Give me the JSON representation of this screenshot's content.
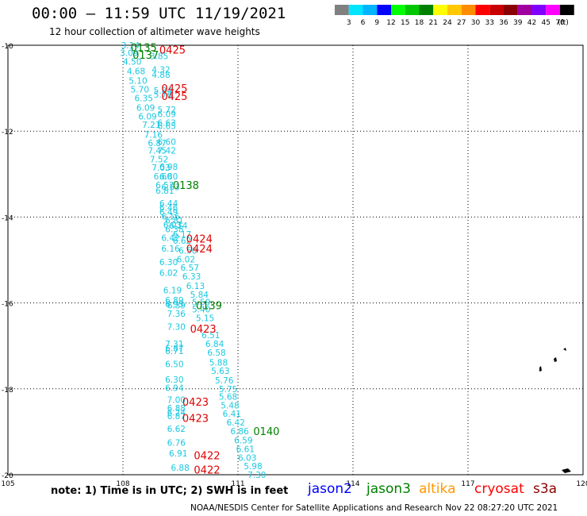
{
  "header": {
    "title": "00:00 – 11:59 UTC 11/19/2021",
    "subtitle": "12 hour collection of altimeter wave heights"
  },
  "legend": {
    "colors": [
      "#808080",
      "#00e5ff",
      "#00b4ff",
      "#0000ff",
      "#00ff00",
      "#00c800",
      "#008000",
      "#ffff00",
      "#ffc800",
      "#ff8c00",
      "#ff0000",
      "#c80000",
      "#8b0000",
      "#a000a0",
      "#7f00ff",
      "#ff00ff",
      "#000000"
    ],
    "labels": [
      "3",
      "6",
      "9",
      "12",
      "15",
      "18",
      "21",
      "24",
      "27",
      "30",
      "33",
      "36",
      "39",
      "42",
      "45",
      "70",
      "(ft)"
    ]
  },
  "map": {
    "lon_ticks": [
      "105",
      "108",
      "111",
      "114",
      "117",
      "120"
    ],
    "lat_ticks": [
      "-10",
      "-12",
      "-14",
      "-16",
      "-18",
      "-20"
    ],
    "colors": {
      "cyan": "#1ac8e0",
      "green": "#008000",
      "red": "#e00000"
    },
    "wave_labels": [
      {
        "lon": 107.95,
        "lat": -10.0,
        "t": "3.14"
      },
      {
        "lon": 107.92,
        "lat": -10.18,
        "t": "3.09"
      },
      {
        "lon": 108.7,
        "lat": -10.25,
        "t": "3.85"
      },
      {
        "lon": 108.0,
        "lat": -10.38,
        "t": "4.50"
      },
      {
        "lon": 108.1,
        "lat": -10.6,
        "t": "4.68"
      },
      {
        "lon": 108.75,
        "lat": -10.56,
        "t": "4.32"
      },
      {
        "lon": 108.75,
        "lat": -10.68,
        "t": "4.88"
      },
      {
        "lon": 108.15,
        "lat": -10.82,
        "t": "5.10"
      },
      {
        "lon": 108.2,
        "lat": -11.03,
        "t": "5.70"
      },
      {
        "lon": 108.8,
        "lat": -11.05,
        "t": "5.84"
      },
      {
        "lon": 108.8,
        "lat": -11.15,
        "t": "5.76"
      },
      {
        "lon": 108.3,
        "lat": -11.23,
        "t": "6.35"
      },
      {
        "lon": 108.35,
        "lat": -11.45,
        "t": "6.09"
      },
      {
        "lon": 108.9,
        "lat": -11.5,
        "t": "5.72"
      },
      {
        "lon": 108.9,
        "lat": -11.6,
        "t": "6.09"
      },
      {
        "lon": 108.4,
        "lat": -11.65,
        "t": "6.09"
      },
      {
        "lon": 108.9,
        "lat": -11.8,
        "t": "6.63"
      },
      {
        "lon": 108.5,
        "lat": -11.85,
        "t": "7.21"
      },
      {
        "lon": 108.9,
        "lat": -11.88,
        "t": "6.65"
      },
      {
        "lon": 108.55,
        "lat": -12.08,
        "t": "7.16"
      },
      {
        "lon": 108.65,
        "lat": -12.27,
        "t": "6.87"
      },
      {
        "lon": 108.9,
        "lat": -12.25,
        "t": "6.60"
      },
      {
        "lon": 108.65,
        "lat": -12.45,
        "t": "7.45"
      },
      {
        "lon": 108.9,
        "lat": -12.45,
        "t": "7.42"
      },
      {
        "lon": 108.7,
        "lat": -12.65,
        "t": "7.52"
      },
      {
        "lon": 108.75,
        "lat": -12.85,
        "t": "7.03"
      },
      {
        "lon": 108.95,
        "lat": -12.83,
        "t": "6.98"
      },
      {
        "lon": 108.8,
        "lat": -13.05,
        "t": "6.60"
      },
      {
        "lon": 108.95,
        "lat": -13.05,
        "t": "6.80"
      },
      {
        "lon": 108.85,
        "lat": -13.25,
        "t": "6.57"
      },
      {
        "lon": 109.0,
        "lat": -13.3,
        "t": "6.53"
      },
      {
        "lon": 108.85,
        "lat": -13.38,
        "t": "6.81"
      },
      {
        "lon": 108.95,
        "lat": -13.68,
        "t": "6.44"
      },
      {
        "lon": 108.95,
        "lat": -13.78,
        "t": "6.46"
      },
      {
        "lon": 108.95,
        "lat": -13.88,
        "t": "6.49"
      },
      {
        "lon": 109.0,
        "lat": -13.98,
        "t": "6.16"
      },
      {
        "lon": 109.1,
        "lat": -14.08,
        "t": "6.81"
      },
      {
        "lon": 109.05,
        "lat": -14.18,
        "t": "6.03"
      },
      {
        "lon": 109.2,
        "lat": -14.2,
        "t": "6.14"
      },
      {
        "lon": 109.1,
        "lat": -14.28,
        "t": "6.38"
      },
      {
        "lon": 109.3,
        "lat": -14.4,
        "t": "6.17"
      },
      {
        "lon": 109.0,
        "lat": -14.48,
        "t": "6.42"
      },
      {
        "lon": 109.3,
        "lat": -14.55,
        "t": "6.62"
      },
      {
        "lon": 109.0,
        "lat": -14.73,
        "t": "6.16"
      },
      {
        "lon": 109.45,
        "lat": -14.78,
        "t": "6.50"
      },
      {
        "lon": 109.4,
        "lat": -14.98,
        "t": "6.02"
      },
      {
        "lon": 108.95,
        "lat": -15.05,
        "t": "6.30"
      },
      {
        "lon": 109.5,
        "lat": -15.18,
        "t": "6.57"
      },
      {
        "lon": 108.95,
        "lat": -15.3,
        "t": "6.02"
      },
      {
        "lon": 109.55,
        "lat": -15.38,
        "t": "6.33"
      },
      {
        "lon": 109.65,
        "lat": -15.6,
        "t": "6.13"
      },
      {
        "lon": 109.05,
        "lat": -15.7,
        "t": "6.19"
      },
      {
        "lon": 109.75,
        "lat": -15.8,
        "t": "5.84"
      },
      {
        "lon": 109.1,
        "lat": -15.93,
        "t": "6.89"
      },
      {
        "lon": 109.1,
        "lat": -16.03,
        "t": "6.95"
      },
      {
        "lon": 109.8,
        "lat": -15.98,
        "t": "5.59"
      },
      {
        "lon": 109.15,
        "lat": -16.05,
        "t": "6.39"
      },
      {
        "lon": 109.8,
        "lat": -16.15,
        "t": "5.40"
      },
      {
        "lon": 109.15,
        "lat": -16.25,
        "t": "7.36"
      },
      {
        "lon": 109.9,
        "lat": -16.35,
        "t": "5.15"
      },
      {
        "lon": 109.15,
        "lat": -16.55,
        "t": "7.30"
      },
      {
        "lon": 110.05,
        "lat": -16.75,
        "t": "6.51"
      },
      {
        "lon": 109.1,
        "lat": -16.95,
        "t": "7.31"
      },
      {
        "lon": 110.15,
        "lat": -16.95,
        "t": "6.84"
      },
      {
        "lon": 109.1,
        "lat": -17.05,
        "t": "6.87"
      },
      {
        "lon": 109.1,
        "lat": -17.12,
        "t": "6.71"
      },
      {
        "lon": 110.2,
        "lat": -17.15,
        "t": "6.58"
      },
      {
        "lon": 110.25,
        "lat": -17.38,
        "t": "5.88"
      },
      {
        "lon": 109.1,
        "lat": -17.42,
        "t": "6.50"
      },
      {
        "lon": 110.3,
        "lat": -17.58,
        "t": "5.63"
      },
      {
        "lon": 109.1,
        "lat": -17.78,
        "t": "6.30"
      },
      {
        "lon": 110.4,
        "lat": -17.8,
        "t": "5.76"
      },
      {
        "lon": 109.1,
        "lat": -17.98,
        "t": "6.94"
      },
      {
        "lon": 110.5,
        "lat": -18.0,
        "t": "5.75"
      },
      {
        "lon": 110.5,
        "lat": -18.18,
        "t": "5.68"
      },
      {
        "lon": 109.15,
        "lat": -18.25,
        "t": "7.00"
      },
      {
        "lon": 110.55,
        "lat": -18.38,
        "t": "5.48"
      },
      {
        "lon": 109.15,
        "lat": -18.45,
        "t": "6.88"
      },
      {
        "lon": 109.15,
        "lat": -18.55,
        "t": "6.24"
      },
      {
        "lon": 109.15,
        "lat": -18.63,
        "t": "6.87"
      },
      {
        "lon": 110.6,
        "lat": -18.58,
        "t": "6.41"
      },
      {
        "lon": 110.7,
        "lat": -18.78,
        "t": "6.42"
      },
      {
        "lon": 109.15,
        "lat": -18.93,
        "t": "6.62"
      },
      {
        "lon": 110.8,
        "lat": -18.98,
        "t": "6.86"
      },
      {
        "lon": 110.9,
        "lat": -19.2,
        "t": "6.59"
      },
      {
        "lon": 109.15,
        "lat": -19.25,
        "t": "6.76"
      },
      {
        "lon": 110.95,
        "lat": -19.4,
        "t": "6.61"
      },
      {
        "lon": 109.2,
        "lat": -19.5,
        "t": "6.91"
      },
      {
        "lon": 111.0,
        "lat": -19.6,
        "t": "6.03"
      },
      {
        "lon": 111.15,
        "lat": -19.8,
        "t": "5.98"
      },
      {
        "lon": 109.25,
        "lat": -19.83,
        "t": "6.88"
      },
      {
        "lon": 111.25,
        "lat": -20.0,
        "t": "7.30"
      }
    ],
    "pass_labels": [
      {
        "lon": 108.2,
        "lat": -10.05,
        "t": "0135",
        "c": "green"
      },
      {
        "lon": 108.25,
        "lat": -10.22,
        "t": "0137",
        "c": "green"
      },
      {
        "lon": 108.95,
        "lat": -10.1,
        "t": "0425",
        "c": "red"
      },
      {
        "lon": 109.0,
        "lat": -11.0,
        "t": "0425",
        "c": "red"
      },
      {
        "lon": 109.0,
        "lat": -11.18,
        "t": "0425",
        "c": "red"
      },
      {
        "lon": 109.3,
        "lat": -13.25,
        "t": "0138",
        "c": "green"
      },
      {
        "lon": 109.65,
        "lat": -14.5,
        "t": "0424",
        "c": "red"
      },
      {
        "lon": 109.65,
        "lat": -14.73,
        "t": "0424",
        "c": "red"
      },
      {
        "lon": 109.9,
        "lat": -16.05,
        "t": "0139",
        "c": "green"
      },
      {
        "lon": 109.75,
        "lat": -16.6,
        "t": "0423",
        "c": "red"
      },
      {
        "lon": 109.55,
        "lat": -18.3,
        "t": "0423",
        "c": "red"
      },
      {
        "lon": 109.55,
        "lat": -18.68,
        "t": "0423",
        "c": "red"
      },
      {
        "lon": 111.4,
        "lat": -18.98,
        "t": "0140",
        "c": "green"
      },
      {
        "lon": 109.85,
        "lat": -19.55,
        "t": "0422",
        "c": "red"
      },
      {
        "lon": 109.85,
        "lat": -19.88,
        "t": "0422",
        "c": "red"
      }
    ]
  },
  "footer": {
    "note": "note: 1) Time is in UTC; 2) SWH is in feet",
    "credit": "NOAA/NESDIS Center for Satellite Applications and Research   Nov 22 08:27:20 UTC 2021",
    "satellites": [
      {
        "name": "jason2",
        "color": "#0000ff"
      },
      {
        "name": "jason3",
        "color": "#008000"
      },
      {
        "name": "altika",
        "color": "#ff9900"
      },
      {
        "name": "cryosat",
        "color": "#ff0000"
      },
      {
        "name": "s3a",
        "color": "#8b0000"
      }
    ]
  }
}
